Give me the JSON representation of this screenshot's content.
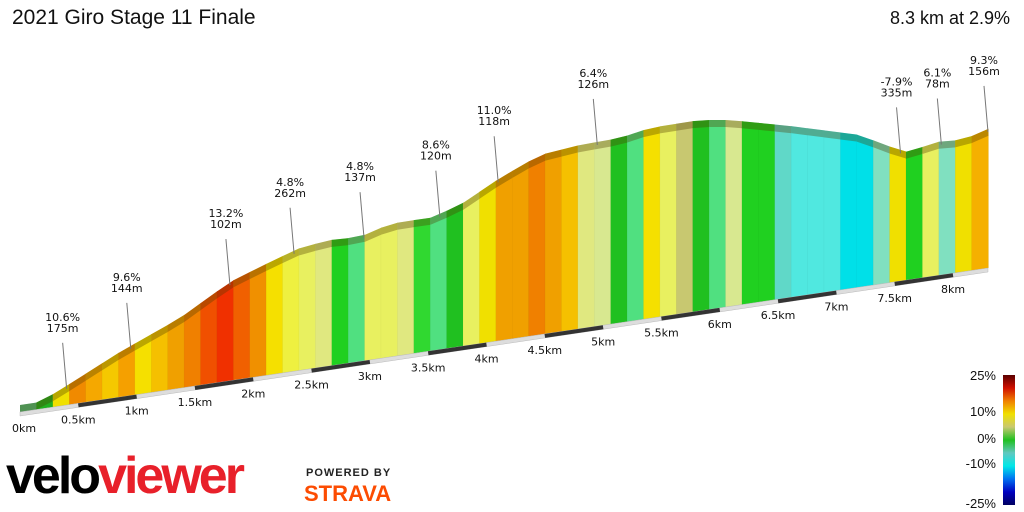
{
  "header": {
    "title": "2021 Giro Stage 11 Finale",
    "summary": "8.3 km at 2.9%"
  },
  "chart_data": {
    "type": "area",
    "title": "2021 Giro Stage 11 Finale",
    "xlabel": "",
    "ylabel": "",
    "x_ticks": [
      "0km",
      "0.5km",
      "1km",
      "1.5km",
      "2km",
      "2.5km",
      "3km",
      "3.5km",
      "4km",
      "4.5km",
      "5km",
      "5.5km",
      "6km",
      "6.5km",
      "7km",
      "7.5km",
      "8km"
    ],
    "annotations": [
      {
        "grade": "10.6%",
        "length": "175m",
        "km": 0.4
      },
      {
        "grade": "9.6%",
        "length": "144m",
        "km": 0.95
      },
      {
        "grade": "13.2%",
        "length": "102m",
        "km": 1.8
      },
      {
        "grade": "4.8%",
        "length": "262m",
        "km": 2.35
      },
      {
        "grade": "4.8%",
        "length": "137m",
        "km": 2.95
      },
      {
        "grade": "8.6%",
        "length": "120m",
        "km": 3.6
      },
      {
        "grade": "11.0%",
        "length": "118m",
        "km": 4.1
      },
      {
        "grade": "6.4%",
        "length": "126m",
        "km": 4.95
      },
      {
        "grade": "-7.9%",
        "length": "335m",
        "km": 7.55
      },
      {
        "grade": "6.1%",
        "length": "78m",
        "km": 7.9
      },
      {
        "grade": "9.3%",
        "length": "156m",
        "km": 8.3
      }
    ],
    "legend": {
      "title": "",
      "ticks": [
        "25%",
        "10%",
        "0%",
        "-10%",
        "-25%"
      ],
      "colors": [
        "#5a0000",
        "#d01000",
        "#f08000",
        "#f0e000",
        "#c8c870",
        "#20c020",
        "#60c8c0",
        "#00e8e8",
        "#0070f0",
        "#0000c0",
        "#000060"
      ],
      "placement": "bottom-right"
    },
    "segment_colors": [
      "#50c080",
      "#20b020",
      "#f0e000",
      "#f08a00",
      "#f5a800",
      "#f5c800",
      "#f5a000",
      "#f5e000",
      "#f5c000",
      "#f0a000",
      "#f08000",
      "#f05000",
      "#f03000",
      "#f06000",
      "#f09000",
      "#f5e000",
      "#eef040",
      "#e8f060",
      "#e0e880",
      "#20d020",
      "#50e080",
      "#e8f060",
      "#e8f060",
      "#e0e880",
      "#30d830",
      "#50e080",
      "#20c020",
      "#e8f060",
      "#f0e000",
      "#f0a000",
      "#f0a000",
      "#f08000",
      "#f0a000",
      "#f5c000",
      "#e0e880",
      "#d8e890",
      "#20c020",
      "#50e080",
      "#f5e000",
      "#e8f060",
      "#c8c870",
      "#20c020",
      "#50e080",
      "#d8e890",
      "#20d020",
      "#20d020",
      "#60d8c8",
      "#50e8e0",
      "#50e8e0",
      "#50e8e0",
      "#00e0e8",
      "#00e0e8",
      "#80e0c0",
      "#f0e000",
      "#20d020",
      "#e8f060",
      "#80e0c0",
      "#f0e000",
      "#f5b000"
    ]
  },
  "branding": {
    "logo_left": "velo",
    "logo_right": "viewer",
    "powered_by": "POWERED BY",
    "partner": "STRAVA"
  }
}
